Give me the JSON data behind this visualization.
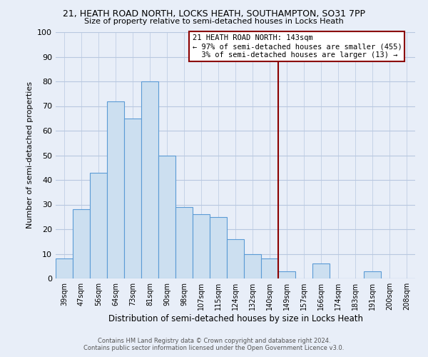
{
  "title1": "21, HEATH ROAD NORTH, LOCKS HEATH, SOUTHAMPTON, SO31 7PP",
  "title2": "Size of property relative to semi-detached houses in Locks Heath",
  "xlabel": "Distribution of semi-detached houses by size in Locks Heath",
  "ylabel": "Number of semi-detached properties",
  "bin_labels": [
    "39sqm",
    "47sqm",
    "56sqm",
    "64sqm",
    "73sqm",
    "81sqm",
    "90sqm",
    "98sqm",
    "107sqm",
    "115sqm",
    "124sqm",
    "132sqm",
    "140sqm",
    "149sqm",
    "157sqm",
    "166sqm",
    "174sqm",
    "183sqm",
    "191sqm",
    "200sqm",
    "208sqm"
  ],
  "bar_heights": [
    8,
    28,
    43,
    72,
    65,
    80,
    50,
    29,
    26,
    25,
    16,
    10,
    8,
    3,
    0,
    6,
    0,
    0,
    3,
    0,
    0
  ],
  "bar_color": "#ccdff0",
  "bar_edge_color": "#5b9bd5",
  "marker_line_color": "#8b0000",
  "annotation_border_color": "#8b0000",
  "marker_label": "21 HEATH ROAD NORTH: 143sqm",
  "pct_smaller": "97% of semi-detached houses are smaller (455)",
  "pct_larger": "3% of semi-detached houses are larger (13)",
  "ylim": [
    0,
    100
  ],
  "yticks": [
    0,
    10,
    20,
    30,
    40,
    50,
    60,
    70,
    80,
    90,
    100
  ],
  "grid_color": "#b8c8e0",
  "footer1": "Contains HM Land Registry data © Crown copyright and database right 2024.",
  "footer2": "Contains public sector information licensed under the Open Government Licence v3.0.",
  "bg_color": "#e8eef8"
}
